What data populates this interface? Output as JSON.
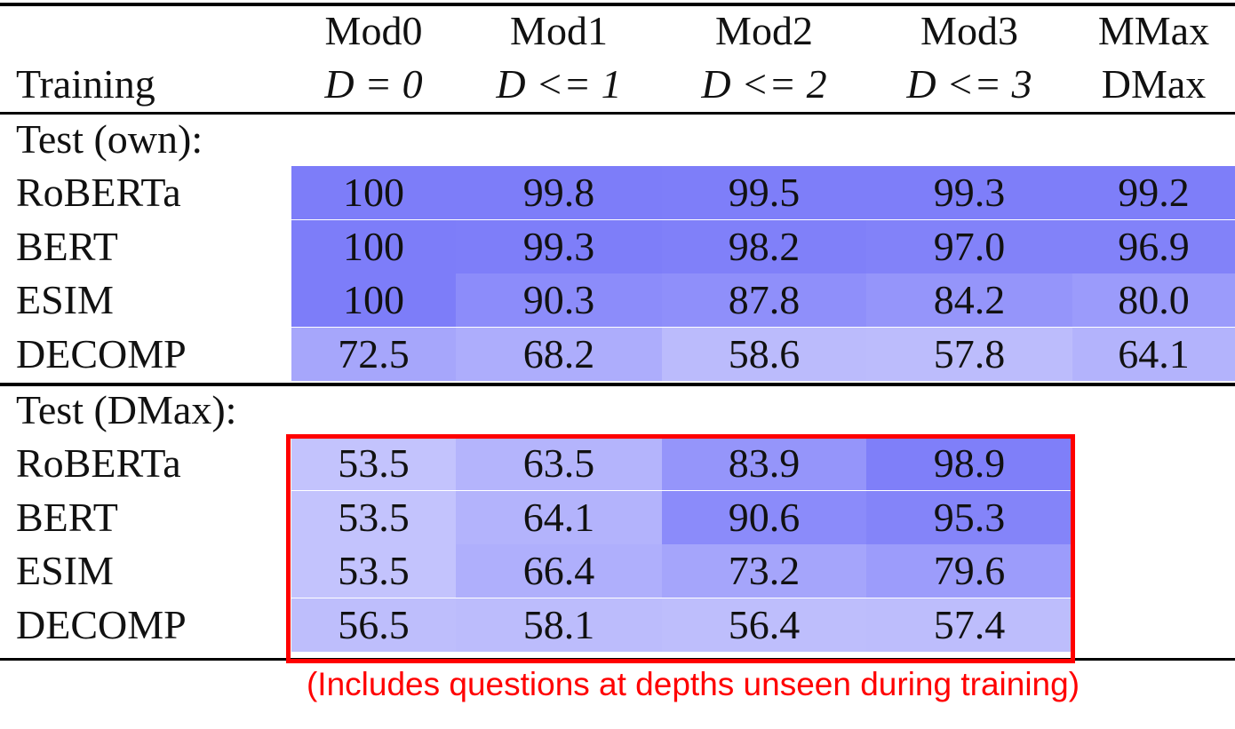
{
  "header": {
    "col_label": "Training",
    "columns": [
      {
        "name": "Mod0",
        "depth": "D = 0"
      },
      {
        "name": "Mod1",
        "depth": "D <= 1"
      },
      {
        "name": "Mod2",
        "depth": "D <= 2"
      },
      {
        "name": "Mod3",
        "depth": "D <= 3"
      },
      {
        "name": "MMax",
        "depth": "DMax"
      }
    ]
  },
  "sections": [
    {
      "title": "Test (own):",
      "rows": [
        {
          "label": "RoBERTa",
          "values": [
            "100",
            "99.8",
            "99.5",
            "99.3",
            "99.2"
          ]
        },
        {
          "label": "BERT",
          "values": [
            "100",
            "99.3",
            "98.2",
            "97.0",
            "96.9"
          ]
        },
        {
          "label": "ESIM",
          "values": [
            "100",
            "90.3",
            "87.8",
            "84.2",
            "80.0"
          ]
        },
        {
          "label": "DECOMP",
          "values": [
            "72.5",
            "68.2",
            "58.6",
            "57.8",
            "64.1"
          ]
        }
      ]
    },
    {
      "title": "Test (DMax):",
      "rows": [
        {
          "label": "RoBERTa",
          "values": [
            "53.5",
            "63.5",
            "83.9",
            "98.9"
          ]
        },
        {
          "label": "BERT",
          "values": [
            "53.5",
            "64.1",
            "90.6",
            "95.3"
          ]
        },
        {
          "label": "ESIM",
          "values": [
            "53.5",
            "66.4",
            "73.2",
            "79.6"
          ]
        },
        {
          "label": "DECOMP",
          "values": [
            "56.5",
            "58.1",
            "56.4",
            "57.4"
          ]
        }
      ]
    }
  ],
  "note": "(Includes questions at depths unseen during training)"
}
